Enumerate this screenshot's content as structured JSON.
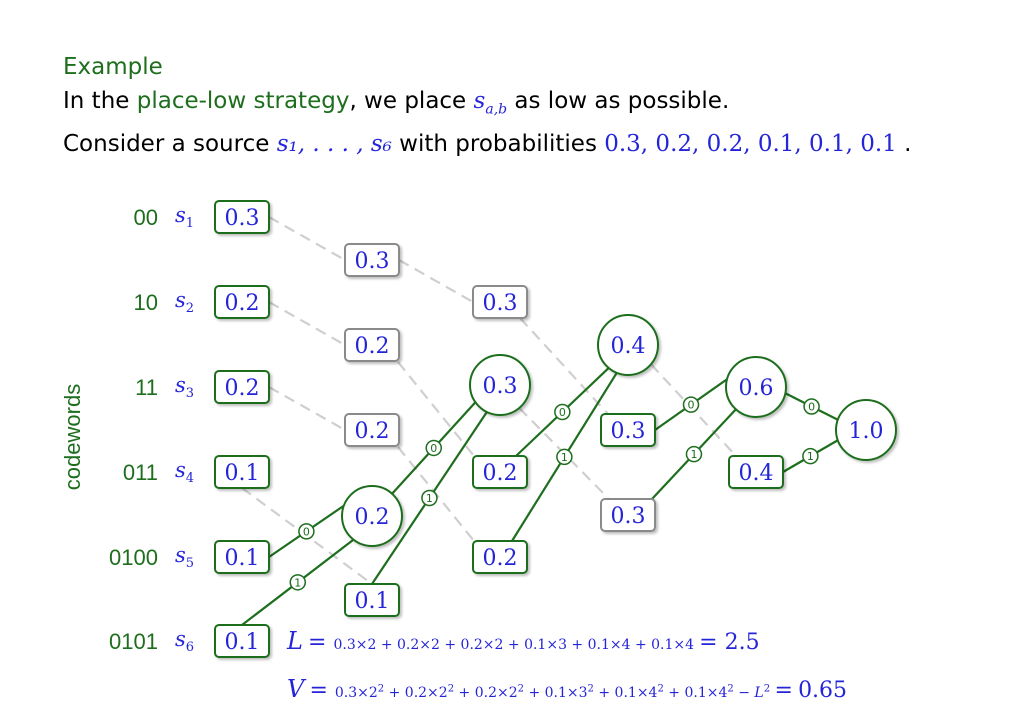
{
  "header": {
    "title": "Example",
    "line1": {
      "prefix": "In the ",
      "strategy": "place-low strategy",
      "middle": ", we place ",
      "symbol": "s",
      "symbol_sub": "a,b",
      "suffix": " as low as possible."
    },
    "line2": {
      "prefix": "Consider a source ",
      "source": "s₁, . . . , s₆",
      "middle": " with probabilities ",
      "probs": "0.3, 0.2, 0.2, 0.1, 0.1, 0.1",
      "suffix": " ."
    }
  },
  "axis_label": "codewords",
  "symbols": [
    {
      "code": "00",
      "name": "s",
      "sub": "1",
      "p": "0.3"
    },
    {
      "code": "10",
      "name": "s",
      "sub": "2",
      "p": "0.2"
    },
    {
      "code": "11",
      "name": "s",
      "sub": "3",
      "p": "0.2"
    },
    {
      "code": "011",
      "name": "s",
      "sub": "4",
      "p": "0.1"
    },
    {
      "code": "0100",
      "name": "s",
      "sub": "5",
      "p": "0.1"
    },
    {
      "code": "0101",
      "name": "s",
      "sub": "6",
      "p": "0.1"
    }
  ],
  "stages": [
    {
      "boxes": [
        {
          "v": "0.3",
          "style": "gray"
        },
        {
          "v": "0.2",
          "style": "gray"
        },
        {
          "v": "0.2",
          "style": "gray"
        },
        {
          "v": "0.1",
          "style": "green"
        }
      ],
      "merged": "0.2"
    },
    {
      "boxes": [
        {
          "v": "0.3",
          "style": "gray"
        },
        {
          "v": "0.2",
          "style": "green"
        },
        {
          "v": "0.2",
          "style": "green"
        }
      ],
      "merged": "0.3"
    },
    {
      "boxes": [
        {
          "v": "0.3",
          "style": "green"
        },
        {
          "v": "0.3",
          "style": "gray"
        }
      ],
      "merged": "0.4"
    },
    {
      "boxes": [
        {
          "v": "0.4",
          "style": "green"
        }
      ],
      "merged": "0.6"
    },
    {
      "boxes": [],
      "merged": "1.0"
    }
  ],
  "edge_labels": [
    "0",
    "1"
  ],
  "formulas": {
    "L": {
      "lhs": "L",
      "terms": "0.3×2 + 0.2×2 + 0.2×2 + 0.1×3 + 0.1×4 + 0.1×4",
      "result": "2.5"
    },
    "V": {
      "lhs": "V",
      "terms": [
        "0.3×2",
        "2",
        " + 0.2×2",
        "2",
        " + 0.2×2",
        "2",
        " + 0.1×3",
        "2",
        " + 0.1×4",
        "2",
        " + 0.1×4",
        "2",
        " − ",
        "L",
        "2"
      ],
      "result": "0.65"
    }
  },
  "colors": {
    "green": "#1e6e1e",
    "blue": "#2424d8",
    "gray": "#8a8a8a",
    "dash": "#cfcfcf"
  }
}
